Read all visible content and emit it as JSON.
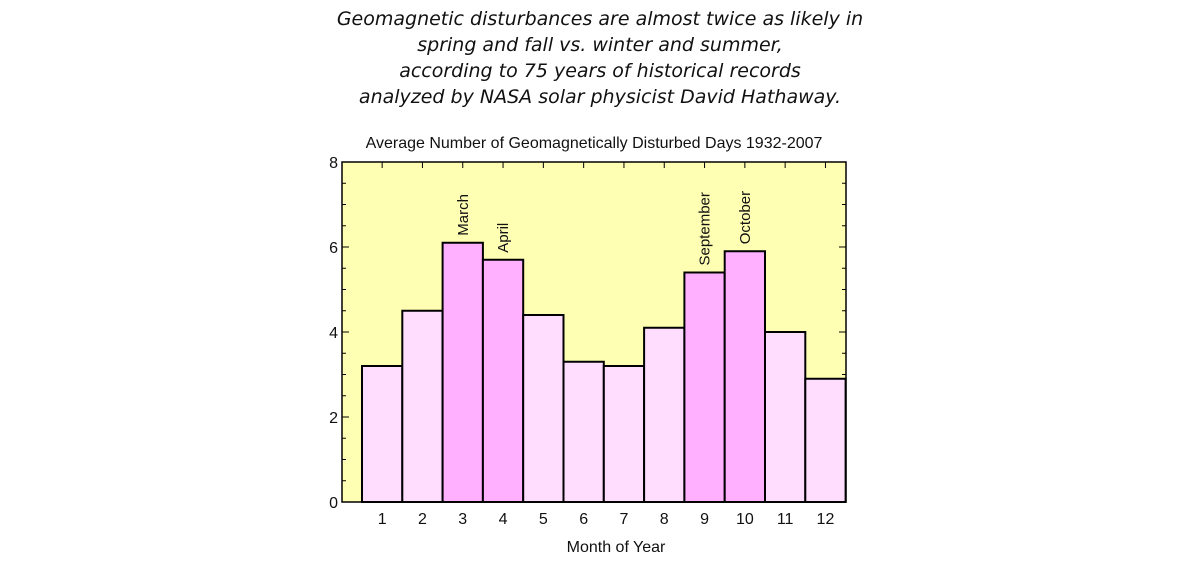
{
  "headline": {
    "lines": [
      "Geomagnetic disturbances are almost twice as likely in",
      "spring and fall vs. winter and summer,",
      "according to 75 years of historical records",
      "analyzed by NASA solar physicist  David Hathaway."
    ]
  },
  "chart_data": {
    "type": "bar",
    "title": "Average Number of Geomagnetically Disturbed Days 1932-2007",
    "xlabel": "Month of Year",
    "ylabel": "",
    "categories": [
      "1",
      "2",
      "3",
      "4",
      "5",
      "6",
      "7",
      "8",
      "9",
      "10",
      "11",
      "12"
    ],
    "values": [
      3.2,
      4.5,
      6.1,
      5.7,
      4.4,
      3.3,
      3.2,
      4.1,
      5.4,
      5.9,
      4.0,
      2.9
    ],
    "ylim": [
      0,
      8
    ],
    "yticks": [
      "0",
      "2",
      "4",
      "6",
      "8"
    ],
    "highlighted": [
      3,
      4,
      9,
      10
    ],
    "annotations": [
      {
        "category": "3",
        "text": "March"
      },
      {
        "category": "4",
        "text": "April"
      },
      {
        "category": "9",
        "text": "September"
      },
      {
        "category": "10",
        "text": "October"
      }
    ],
    "colors": {
      "plot_background": "#ffffb3",
      "bar": "#ffddff",
      "bar_highlight": "#ffb0ff",
      "outline": "#000000"
    },
    "grid": false,
    "legend": "none"
  }
}
